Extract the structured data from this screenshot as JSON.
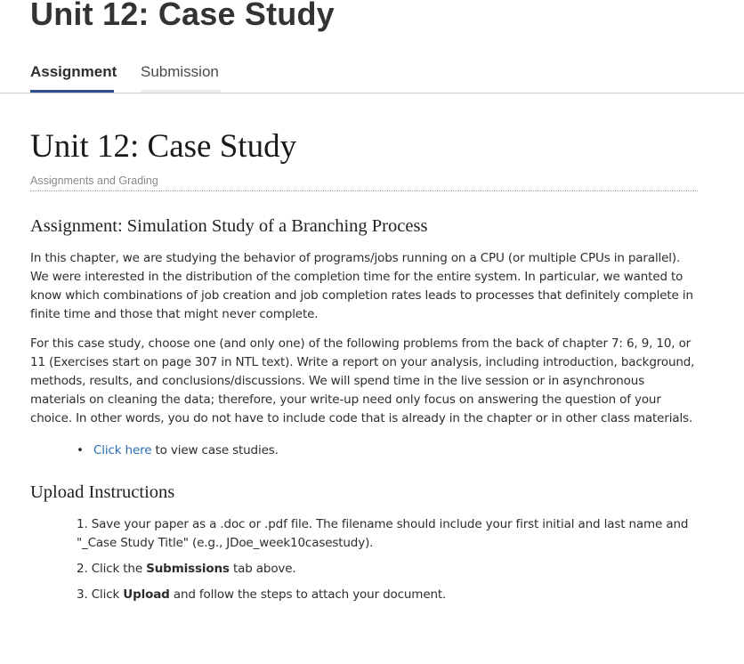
{
  "header": {
    "title": "Unit 12: Case Study"
  },
  "tabs": [
    {
      "label": "Assignment",
      "active": true
    },
    {
      "label": "Submission",
      "active": false
    }
  ],
  "main": {
    "title": "Unit 12: Case Study",
    "subtitle": "Assignments and Grading",
    "assignment_heading": "Assignment: Simulation Study of a Branching Process",
    "paragraph1": "In this chapter, we are studying the behavior of programs/jobs running on a CPU (or multiple CPUs in parallel). We were interested in the distribution of the completion time for the entire system. In particular, we wanted to know which combinations of job creation and job completion rates leads to processes that definitely complete in finite time and those that might never complete.",
    "paragraph2": "For this case study, choose one (and only one) of the following problems from the back of chapter 7: 6, 9, 10, or 11 (Exercises start on page 307 in NTL text). Write a report on your analysis, including introduction, background, methods, results, and conclusions/discussions. We will spend time in the live session or in asynchronous materials on cleaning the data; therefore, your write-up need only focus on answering the question of your choice. In other words, you do not have to include code that is already in the chapter or in other class materials.",
    "bullet": {
      "link_text": "Click here",
      "rest_text": " to view case studies."
    },
    "upload_heading": "Upload Instructions",
    "steps": {
      "step1_num": "1. ",
      "step1_text": "Save your paper as a .doc or .pdf file. The filename should include your first initial and last name and \"_Case Study Title\" (e.g., JDoe_week10casestudy).",
      "step2_num": "2. ",
      "step2_pre": "Click the ",
      "step2_bold": "Submissions",
      "step2_post": " tab above.",
      "step3_num": "3. ",
      "step3_pre": "Click ",
      "step3_bold": "Upload",
      "step3_post": " and follow the steps to attach your document."
    }
  },
  "colors": {
    "tab_active_underline": "#2f4f8f",
    "link": "#2a6db0"
  }
}
